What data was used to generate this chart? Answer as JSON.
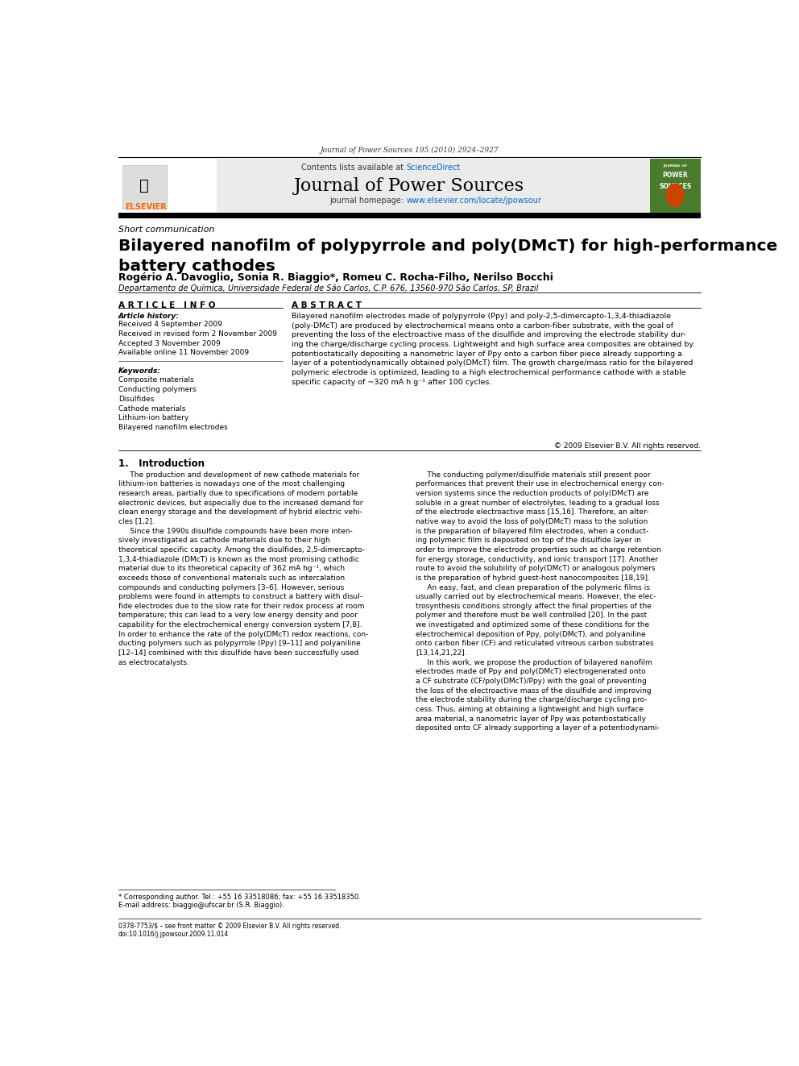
{
  "page_width": 9.92,
  "page_height": 13.23,
  "bg_color": "#ffffff",
  "journal_ref": "Journal of Power Sources 195 (2010) 2924–2927",
  "header_bg": "#ebebeb",
  "contents_text": "Contents lists available at",
  "sciencedirect_text": "ScienceDirect",
  "sciencedirect_color": "#0066cc",
  "journal_title": "Journal of Power Sources",
  "homepage_label": "journal homepage:",
  "homepage_url": "www.elsevier.com/locate/jpowsour",
  "homepage_color": "#0066cc",
  "section_label": "Short communication",
  "article_title": "Bilayered nanofilm of polypyrrole and poly(DMcT) for high-performance\nbattery cathodes",
  "authors": "Rogério A. Davoglio, Sonia R. Biaggio*, Romeu C. Rocha-Filho, Nerilso Bocchi",
  "affiliation": "Departamento de Química, Universidade Federal de São Carlos, C.P. 676, 13560-970 São Carlos, SP, Brazil",
  "article_info_header": "A R T I C L E   I N F O",
  "article_history_label": "Article history:",
  "history_lines": [
    "Received 4 September 2009",
    "Received in revised form 2 November 2009",
    "Accepted 3 November 2009",
    "Available online 11 November 2009"
  ],
  "keywords_label": "Keywords:",
  "keywords": [
    "Composite materials",
    "Conducting polymers",
    "Disulfides",
    "Cathode materials",
    "Lithium-ion battery",
    "Bilayered nanofilm electrodes"
  ],
  "abstract_header": "A B S T R A C T",
  "abstract_text": "Bilayered nanofilm electrodes made of polypyrrole (Ppy) and poly-2,5-dimercapto-1,3,4-thiadiazole\n(poly-DMcT) are produced by electrochemical means onto a carbon-fiber substrate, with the goal of\npreventing the loss of the electroactive mass of the disulfide and improving the electrode stability dur-\ning the charge/discharge cycling process. Lightweight and high surface area composites are obtained by\npotentiostatically depositing a nanometric layer of Ppy onto a carbon fiber piece already supporting a\nlayer of a potentiodynamically obtained poly(DMcT) film. The growth charge/mass ratio for the bilayered\npolymeric electrode is optimized, leading to a high electrochemical performance cathode with a stable\nspecific capacity of ~320 mA h g⁻¹ after 100 cycles.",
  "copyright_text": "© 2009 Elsevier B.V. All rights reserved.",
  "intro_header": "1.   Introduction",
  "intro_col1": "     The production and development of new cathode materials for\nlithium-ion batteries is nowadays one of the most challenging\nresearch areas, partially due to specifications of modern portable\nelectronic devices, but especially due to the increased demand for\nclean energy storage and the development of hybrid electric vehi-\ncles [1,2].\n     Since the 1990s disulfide compounds have been more inten-\nsively investigated as cathode materials due to their high\ntheoretical specific capacity. Among the disulfides, 2,5-dimercapto-\n1,3,4-thiadiazole (DMcT) is known as the most promising cathodic\nmaterial due to its theoretical capacity of 362 mA hg⁻¹, which\nexceeds those of conventional materials such as intercalation\ncompounds and conducting polymers [3–6]. However, serious\nproblems were found in attempts to construct a battery with disul-\nfide electrodes due to the slow rate for their redox process at room\ntemperature; this can lead to a very low energy density and poor\ncapability for the electrochemical energy conversion system [7,8].\nIn order to enhance the rate of the poly(DMcT) redox reactions, con-\nducting polymers such as polypyrrole (Ppy) [9–11] and polyaniline\n[12–14] combined with this disulfide have been successfully used\nas electrocatalysts.",
  "intro_col2": "     The conducting polymer/disulfide materials still present poor\nperformances that prevent their use in electrochemical energy con-\nversion systems since the reduction products of poly(DMcT) are\nsoluble in a great number of electrolytes, leading to a gradual loss\nof the electrode electroactive mass [15,16]. Therefore, an alter-\nnative way to avoid the loss of poly(DMcT) mass to the solution\nis the preparation of bilayered film electrodes, when a conduct-\ning polymeric film is deposited on top of the disulfide layer in\norder to improve the electrode properties such as charge retention\nfor energy storage, conductivity, and ionic transport [17]. Another\nroute to avoid the solubility of poly(DMcT) or analogous polymers\nis the preparation of hybrid guest-host nanocomposites [18,19].\n     An easy, fast, and clean preparation of the polymeric films is\nusually carried out by electrochemical means. However, the elec-\ntrosynthesis conditions strongly affect the final properties of the\npolymer and therefore must be well controlled [20]. In the past\nwe investigated and optimized some of these conditions for the\nelectrochemical deposition of Ppy, poly(DMcT), and polyaniline\nonto carbon fiber (CF) and reticulated vitreous carbon substrates\n[13,14,21,22].\n     In this work, we propose the production of bilayered nanofilm\nelectrodes made of Ppy and poly(DMcT) electrogenerated onto\na CF substrate (CF/poly(DMcT)/Ppy) with the goal of preventing\nthe loss of the electroactive mass of the disulfide and improving\nthe electrode stability during the charge/discharge cycling pro-\ncess. Thus, aiming at obtaining a lightweight and high surface\narea material, a nanometric layer of Ppy was potentiostatically\ndeposited onto CF already supporting a layer of a potentiodynami-",
  "footnote_line1": "* Corresponding author. Tel.: +55 16 33518086; fax: +55 16 33518350.",
  "footnote_line2": "E-mail address: biaggio@ufscar.br (S.R. Biaggio).",
  "footer_line1": "0378-7753/$ – see front matter © 2009 Elsevier B.V. All rights reserved.",
  "footer_line2": "doi:10.1016/j.jpowsour.2009.11.014"
}
